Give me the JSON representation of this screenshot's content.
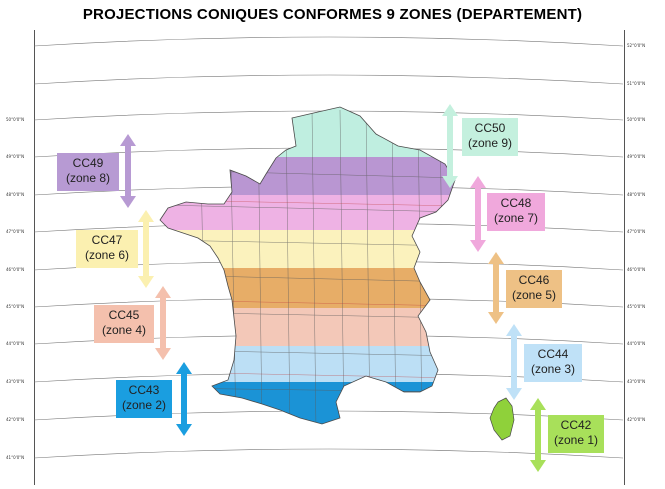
{
  "title": "PROJECTIONS CONIQUES CONFORMES 9 ZONES (DEPARTEMENT)",
  "latitude_ticks": [
    "52°0'0\"N",
    "51°0'0\"N",
    "50°0'0\"N",
    "49°0'0\"N",
    "48°0'0\"N",
    "47°0'0\"N",
    "46°0'0\"N",
    "45°0'0\"N",
    "44°0'0\"N",
    "43°0'0\"N",
    "42°0'0\"N",
    "41°0'0\"N"
  ],
  "zones": [
    {
      "code": "CC50",
      "name": "(zone 9)",
      "color": "#c4f0de",
      "fill": "#bfeee0"
    },
    {
      "code": "CC49",
      "name": "(zone 8)",
      "color": "#b79ad3",
      "fill": "#b996d2"
    },
    {
      "code": "CC48",
      "name": "(zone 7)",
      "color": "#f0a8dc",
      "fill": "#eeb2e4"
    },
    {
      "code": "CC47",
      "name": "(zone 6)",
      "color": "#fbf0b0",
      "fill": "#fbf2bd"
    },
    {
      "code": "CC46",
      "name": "(zone 5)",
      "color": "#eec185",
      "fill": "#e7ad67"
    },
    {
      "code": "CC45",
      "name": "(zone 4)",
      "color": "#f4c0ad",
      "fill": "#f3c8b8"
    },
    {
      "code": "CC44",
      "name": "(zone 3)",
      "color": "#bfe1f7",
      "fill": "#bcdff5"
    },
    {
      "code": "CC43",
      "name": "(zone 2)",
      "color": "#1a9ee0",
      "fill": "#1b93d6"
    },
    {
      "code": "CC42",
      "name": "(zone 1)",
      "color": "#a8e05a",
      "fill": "#8fd13a"
    }
  ]
}
